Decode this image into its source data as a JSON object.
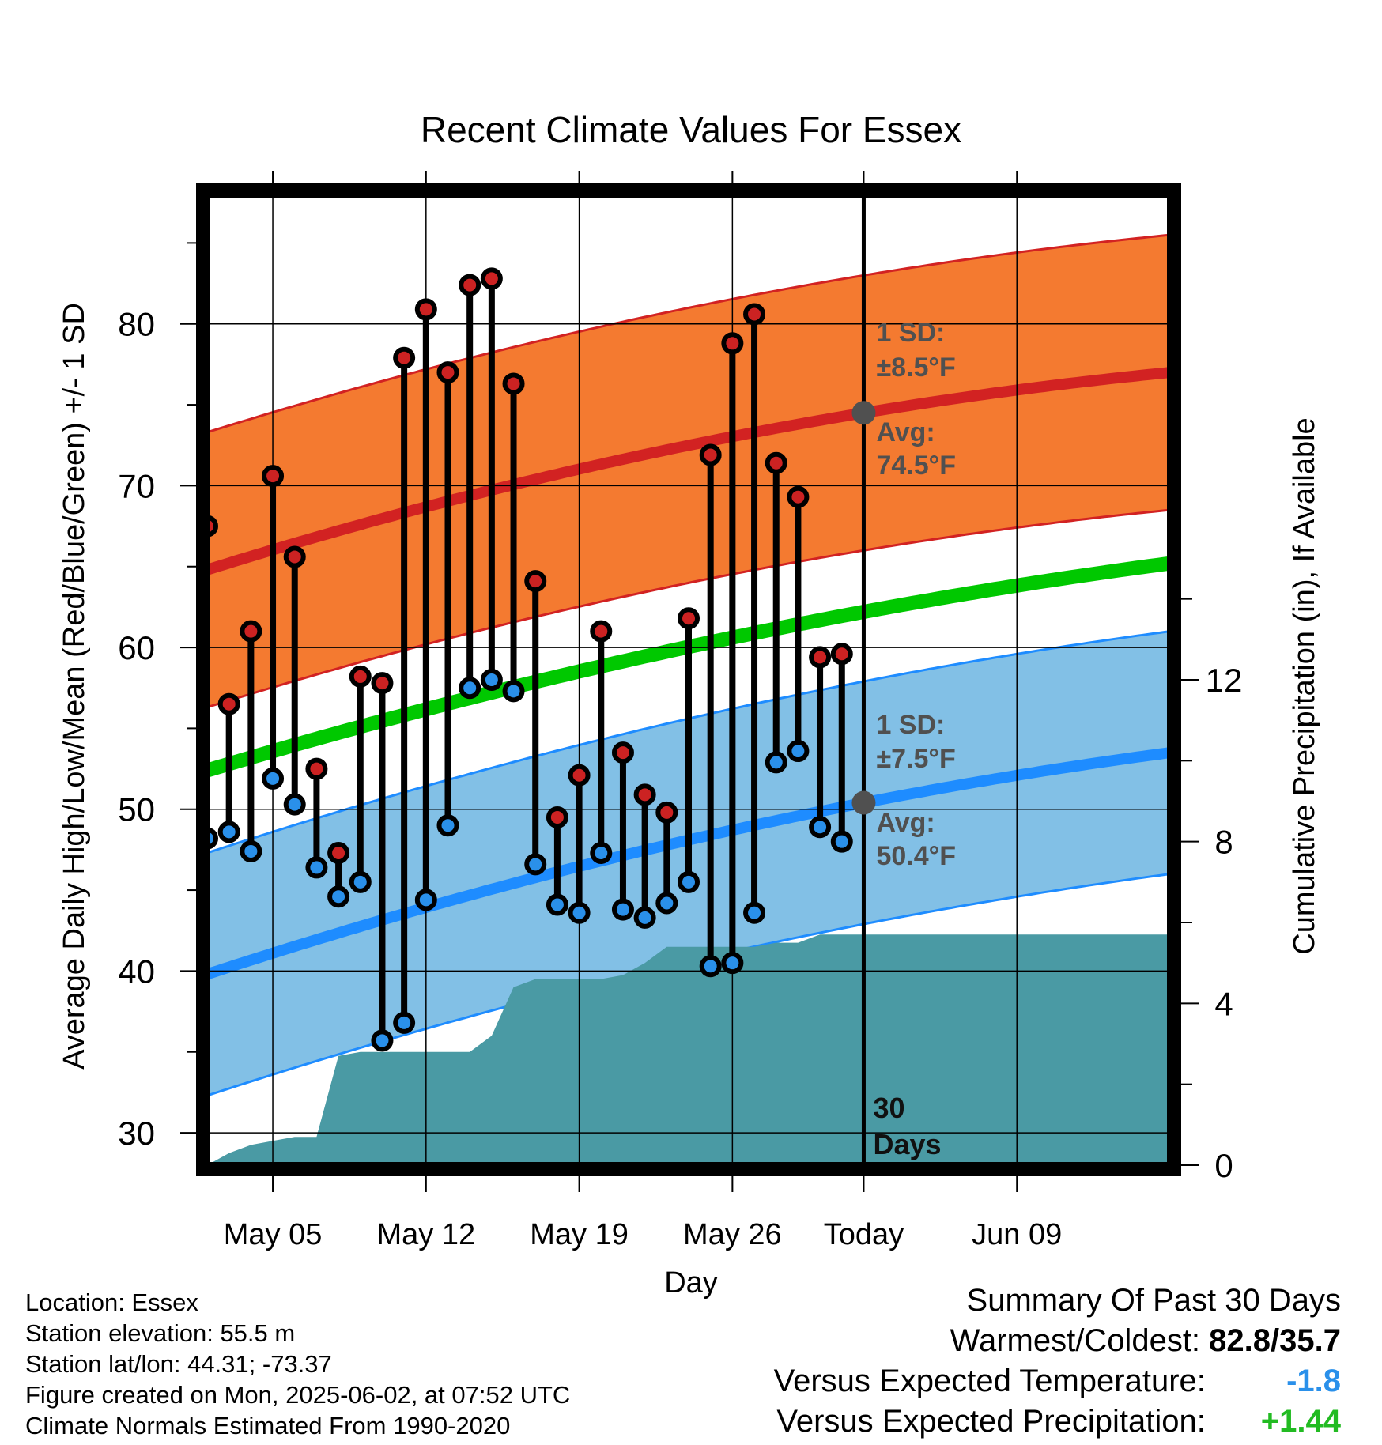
{
  "chart_data": {
    "type": "line",
    "title": "Recent Climate Values For Essex",
    "xlabel": "Day",
    "ylabel": "Average Daily High/Low/Mean (Red/Blue/Green) +/- 1 SD",
    "y2label": "Cumulative Precipitation (in), If Available",
    "ylim": [
      28,
      88
    ],
    "y2lim": [
      0,
      24
    ],
    "yticks": [
      30,
      40,
      50,
      60,
      70,
      80
    ],
    "y2ticks": [
      0,
      4,
      8,
      12
    ],
    "x_range_days": [
      -30,
      14
    ],
    "xticks": [
      {
        "day": -27,
        "label": "May 05"
      },
      {
        "day": -20,
        "label": "May 12"
      },
      {
        "day": -13,
        "label": "May 19"
      },
      {
        "day": -6,
        "label": "May 26"
      },
      {
        "day": 0,
        "label": "Today"
      },
      {
        "day": 7,
        "label": "Jun 09"
      }
    ],
    "today_label": "30 Days",
    "normals": {
      "high_mean": {
        "start": 64.8,
        "today": 74.5,
        "end": 77.0
      },
      "high_sd": 8.5,
      "low_mean": {
        "start": 39.8,
        "today": 50.4,
        "end": 53.5
      },
      "low_sd": 7.5,
      "mean": {
        "start": 52.4,
        "today": 62.2,
        "end": 65.2
      }
    },
    "annotations": {
      "high_sd_label": "1 SD:",
      "high_sd_value": "±8.5°F",
      "high_avg_label": "Avg:",
      "high_avg_value": "74.5°F",
      "low_sd_label": "1 SD:",
      "low_sd_value": "±7.5°F",
      "low_avg_label": "Avg:",
      "low_avg_value": "50.4°F"
    },
    "series": [
      {
        "name": "High",
        "days": [
          -30,
          -29,
          -28,
          -27,
          -26,
          -25,
          -24,
          -23,
          -22,
          -21,
          -20,
          -19,
          -18,
          -17,
          -16,
          -15,
          -14,
          -13,
          -12,
          -11,
          -10,
          -9,
          -8,
          -7,
          -6,
          -5,
          -4,
          -3,
          -2,
          -1,
          0
        ],
        "values": [
          67.5,
          56.5,
          61.0,
          70.6,
          65.6,
          52.5,
          47.3,
          58.2,
          57.8,
          77.9,
          80.9,
          77.0,
          82.4,
          82.8,
          76.3,
          64.1,
          49.5,
          52.1,
          61.0,
          53.5,
          50.9,
          49.8,
          61.8,
          71.9,
          78.8,
          80.6,
          71.4,
          69.3,
          59.4,
          59.6,
          null
        ]
      },
      {
        "name": "Low",
        "days": [
          -30,
          -29,
          -28,
          -27,
          -26,
          -25,
          -24,
          -23,
          -22,
          -21,
          -20,
          -19,
          -18,
          -17,
          -16,
          -15,
          -14,
          -13,
          -12,
          -11,
          -10,
          -9,
          -8,
          -7,
          -6,
          -5,
          -4,
          -3,
          -2,
          -1,
          0
        ],
        "values": [
          48.2,
          48.6,
          47.4,
          51.9,
          50.3,
          46.4,
          44.6,
          45.5,
          35.7,
          36.8,
          44.4,
          49.0,
          57.5,
          58.0,
          57.3,
          46.6,
          44.1,
          43.6,
          47.3,
          43.8,
          43.3,
          44.2,
          45.5,
          40.3,
          40.5,
          43.6,
          52.9,
          53.6,
          48.9,
          48.0,
          null
        ]
      },
      {
        "name": "Cumulative Precipitation",
        "days": [
          -30,
          -29,
          -28,
          -27,
          -26,
          -25,
          -24,
          -23,
          -22,
          -21,
          -20,
          -19,
          -18,
          -17,
          -16,
          -15,
          -14,
          -13,
          -12,
          -11,
          -10,
          -9,
          -8,
          -7,
          -6,
          -5,
          -4,
          -3,
          -2,
          -1,
          0,
          14
        ],
        "values": [
          0.0,
          0.3,
          0.5,
          0.6,
          0.7,
          0.7,
          2.7,
          2.8,
          2.8,
          2.8,
          2.8,
          2.8,
          2.8,
          3.2,
          4.4,
          4.6,
          4.6,
          4.6,
          4.6,
          4.7,
          5.0,
          5.4,
          5.4,
          5.4,
          5.4,
          5.4,
          5.5,
          5.5,
          5.7,
          5.7,
          5.7,
          5.7
        ]
      }
    ]
  },
  "footer": {
    "location": "Location: Essex",
    "elevation": "Station elevation: 55.5 m",
    "latlon": "Station lat/lon: 44.31; -73.37",
    "created": "Figure created on Mon, 2025-06-02, at 07:52 UTC",
    "normals": "Climate Normals Estimated From 1990-2020"
  },
  "summary": {
    "heading": "Summary Of Past 30 Days",
    "warmest_label": "Warmest/Coldest:",
    "warmest_value": "82.8/35.7",
    "temp_label": "Versus Expected Temperature:",
    "temp_value": "-1.8",
    "precip_label": "Versus Expected Precipitation:",
    "precip_value": "+1.44"
  },
  "colors": {
    "high_band": "#f47a30",
    "high_line": "#d22222",
    "low_band": "#82c0e6",
    "low_line": "#1e8cff",
    "mean_line": "#00c800",
    "precip": "#4a9aa4",
    "high_dot": "#cc2222",
    "low_dot": "#2a90ea",
    "annotation": "#505050",
    "temp_value": "#2a90ea",
    "precip_value": "#22bb22"
  }
}
